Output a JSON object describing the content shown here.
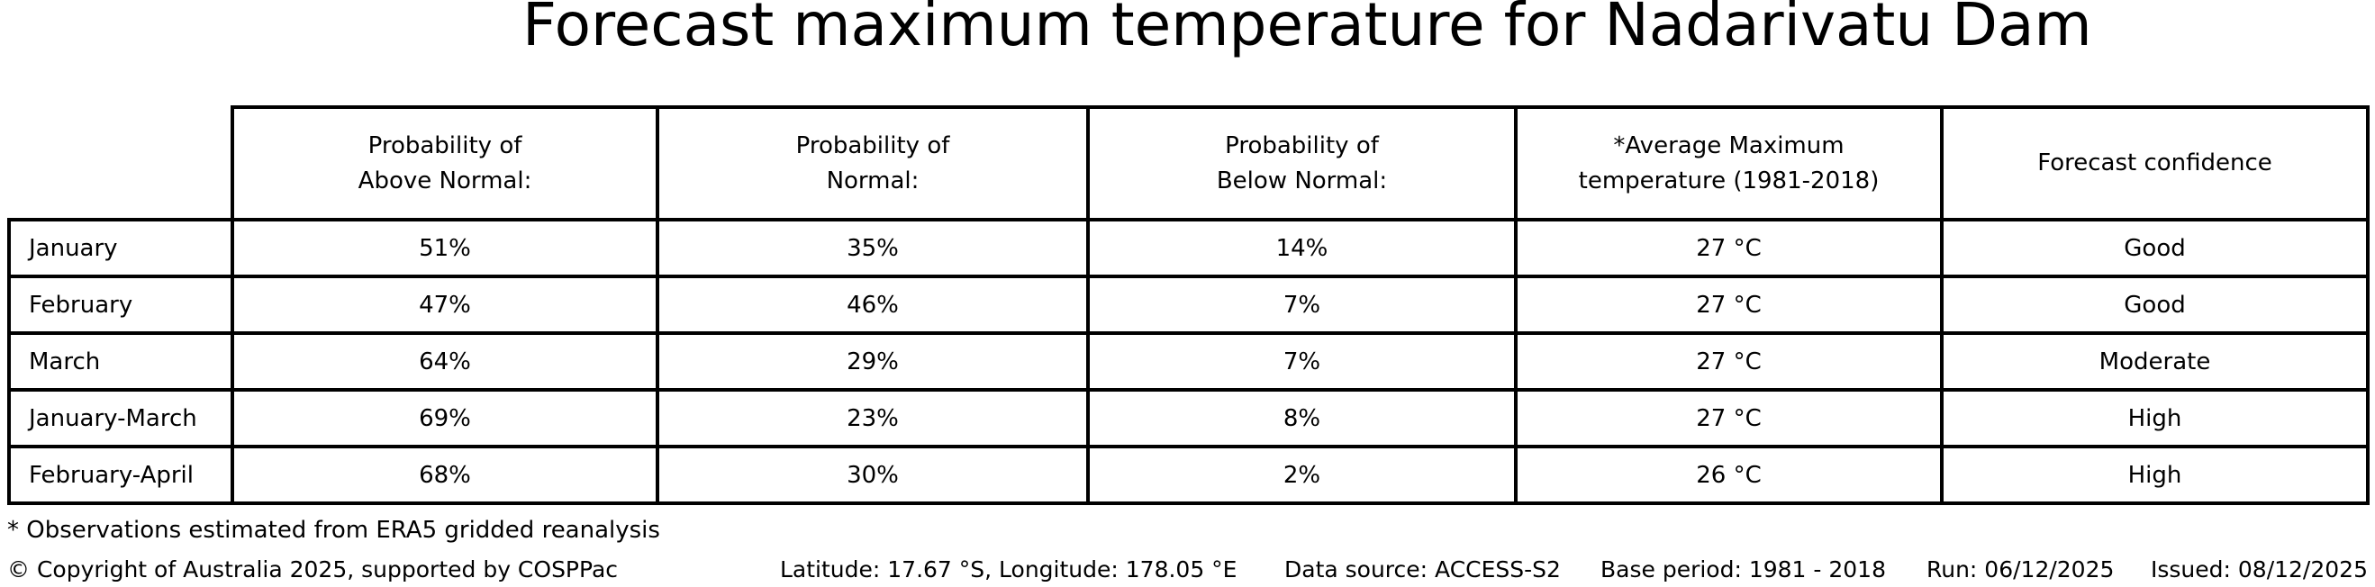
{
  "title": "Forecast maximum temperature for Nadarivatu Dam",
  "chart_data": {
    "type": "table",
    "title": "Forecast maximum temperature for Nadarivatu Dam",
    "column_headers": [
      "Probability of\nAbove Normal:",
      "Probability of\nNormal:",
      "Probability of\nBelow Normal:",
      "*Average Maximum\ntemperature (1981-2018)",
      "Forecast confidence"
    ],
    "rows": [
      {
        "label": "January",
        "above": "51%",
        "normal": "35%",
        "below": "14%",
        "avg_max_temp": "27 °C",
        "confidence": "Good"
      },
      {
        "label": "February",
        "above": "47%",
        "normal": "46%",
        "below": "7%",
        "avg_max_temp": "27 °C",
        "confidence": "Good"
      },
      {
        "label": "March",
        "above": "64%",
        "normal": "29%",
        "below": "7%",
        "avg_max_temp": "27 °C",
        "confidence": "Moderate"
      },
      {
        "label": "January-March",
        "above": "69%",
        "normal": "23%",
        "below": "8%",
        "avg_max_temp": "27 °C",
        "confidence": "High"
      },
      {
        "label": "February-April",
        "above": "68%",
        "normal": "30%",
        "below": "2%",
        "avg_max_temp": "26 °C",
        "confidence": "High"
      }
    ]
  },
  "footnote": "* Observations estimated from ERA5 gridded reanalysis",
  "footer": {
    "copyright": "© Copyright of Australia 2025, supported by COSPPac",
    "location": "Latitude: 17.67 °S, Longitude: 178.05 °E",
    "data_source": "Data source: ACCESS-S2",
    "base_period": "Base period: 1981 - 2018",
    "run": "Run: 06/12/2025",
    "issued": "Issued: 08/12/2025"
  }
}
